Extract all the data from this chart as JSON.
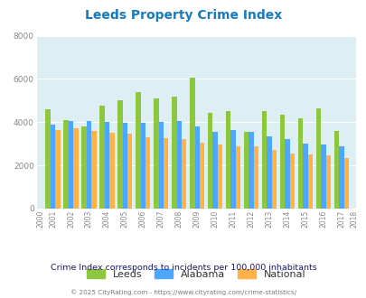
{
  "title": "Leeds Property Crime Index",
  "years_with_data": [
    2001,
    2002,
    2003,
    2004,
    2005,
    2006,
    2007,
    2008,
    2009,
    2010,
    2011,
    2012,
    2013,
    2014,
    2015,
    2016,
    2017
  ],
  "all_years": [
    2000,
    2001,
    2002,
    2003,
    2004,
    2005,
    2006,
    2007,
    2008,
    2009,
    2010,
    2011,
    2012,
    2013,
    2014,
    2015,
    2016,
    2017,
    2018
  ],
  "leeds": [
    4600,
    4100,
    3800,
    4750,
    5000,
    5400,
    5100,
    5200,
    6050,
    4450,
    4500,
    3550,
    4500,
    4350,
    4200,
    4650,
    3600
  ],
  "alabama": [
    3900,
    4050,
    4050,
    4000,
    3950,
    3950,
    4000,
    4050,
    3800,
    3550,
    3650,
    3550,
    3350,
    3200,
    3000,
    2950,
    2900
  ],
  "national": [
    3650,
    3700,
    3600,
    3500,
    3450,
    3300,
    3250,
    3200,
    3050,
    2950,
    2900,
    2900,
    2700,
    2550,
    2500,
    2450,
    2350
  ],
  "leeds_color": "#8dc63f",
  "alabama_color": "#4da6ff",
  "national_color": "#ffb347",
  "bg_color": "#ddeef5",
  "ylim": [
    0,
    8000
  ],
  "yticks": [
    0,
    2000,
    4000,
    6000,
    8000
  ],
  "subtitle": "Crime Index corresponds to incidents per 100,000 inhabitants",
  "footer": "© 2025 CityRating.com - https://www.cityrating.com/crime-statistics/",
  "title_color": "#1a7abf",
  "subtitle_color": "#1a1a6e",
  "footer_color": "#7a7a7a",
  "legend_label_color": "#333333"
}
